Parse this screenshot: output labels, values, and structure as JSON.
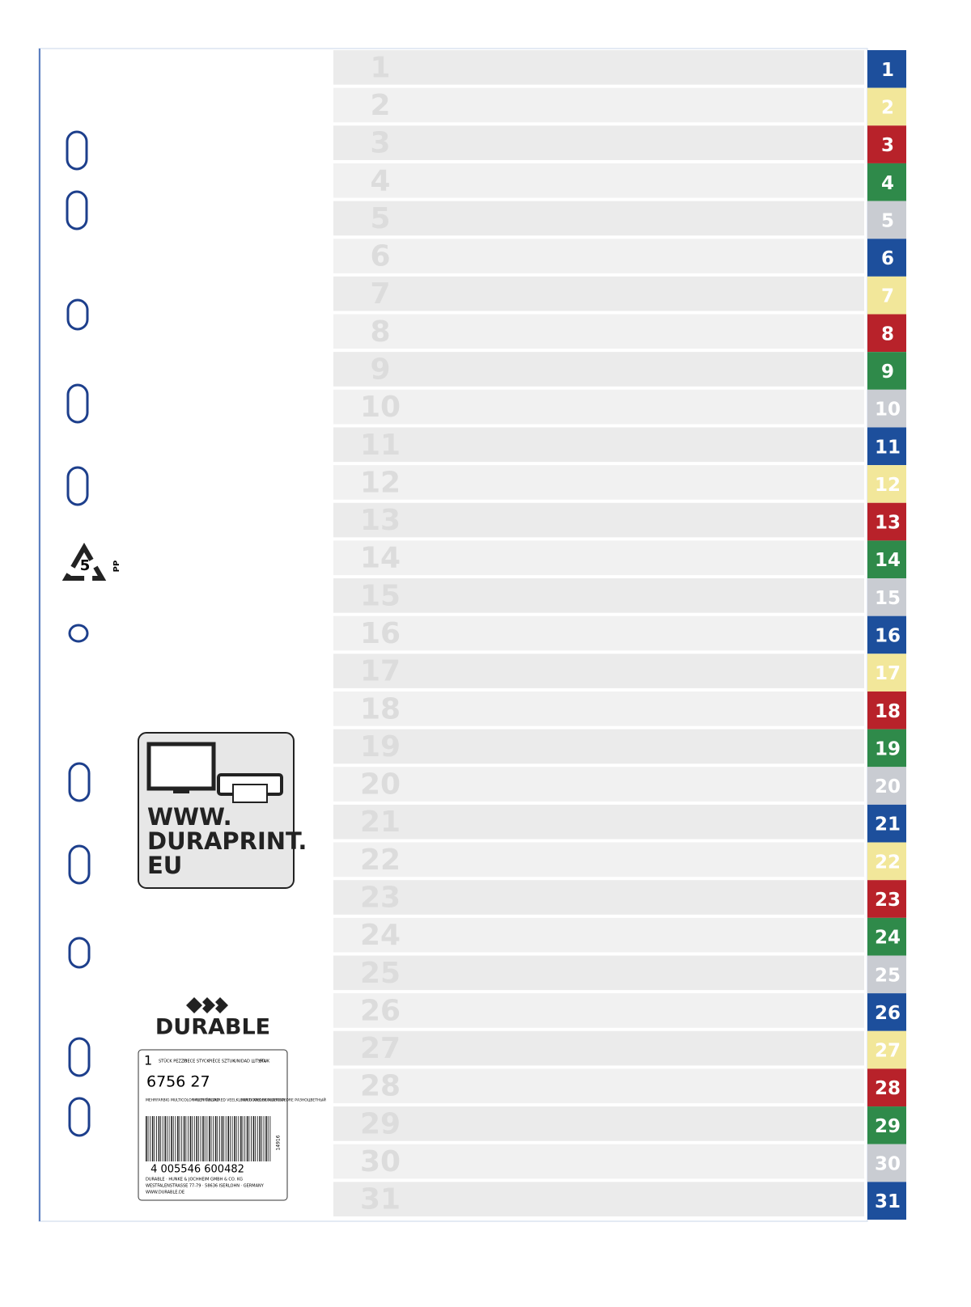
{
  "tabs": [
    {
      "label": "1",
      "color": "#1d4f9c"
    },
    {
      "label": "2",
      "color": "#f2e79a"
    },
    {
      "label": "3",
      "color": "#b8222a"
    },
    {
      "label": "4",
      "color": "#2f8a4a"
    },
    {
      "label": "5",
      "color": "#c9ccd2"
    },
    {
      "label": "6",
      "color": "#1d4f9c"
    },
    {
      "label": "7",
      "color": "#f2e79a"
    },
    {
      "label": "8",
      "color": "#b8222a"
    },
    {
      "label": "9",
      "color": "#2f8a4a"
    },
    {
      "label": "10",
      "color": "#c9ccd2"
    },
    {
      "label": "11",
      "color": "#1d4f9c"
    },
    {
      "label": "12",
      "color": "#f2e79a"
    },
    {
      "label": "13",
      "color": "#b8222a"
    },
    {
      "label": "14",
      "color": "#2f8a4a"
    },
    {
      "label": "15",
      "color": "#c9ccd2"
    },
    {
      "label": "16",
      "color": "#1d4f9c"
    },
    {
      "label": "17",
      "color": "#f2e79a"
    },
    {
      "label": "18",
      "color": "#b8222a"
    },
    {
      "label": "19",
      "color": "#2f8a4a"
    },
    {
      "label": "20",
      "color": "#c9ccd2"
    },
    {
      "label": "21",
      "color": "#1d4f9c"
    },
    {
      "label": "22",
      "color": "#f2e79a"
    },
    {
      "label": "23",
      "color": "#b8222a"
    },
    {
      "label": "24",
      "color": "#2f8a4a"
    },
    {
      "label": "25",
      "color": "#c9ccd2"
    },
    {
      "label": "26",
      "color": "#1d4f9c"
    },
    {
      "label": "27",
      "color": "#f2e79a"
    },
    {
      "label": "28",
      "color": "#b8222a"
    },
    {
      "label": "29",
      "color": "#2f8a4a"
    },
    {
      "label": "30",
      "color": "#c9ccd2"
    },
    {
      "label": "31",
      "color": "#1d4f9c"
    }
  ],
  "recycling": {
    "code": "5",
    "material": "PP"
  },
  "web_box": {
    "lines": [
      "WWW.",
      "DURAPRINT.",
      "EU"
    ]
  },
  "brand": "DURABLE",
  "label": {
    "quantity": "1",
    "units": [
      "STÜCK PEZZO",
      "PIECE STYCK",
      "PIÈCE SZTUK",
      "UNIDAD ШТУКА",
      "STUK"
    ],
    "article": "6756 27",
    "colors": [
      "MEHRFARBIG MULTICOLOR FLERFÄRGAD",
      "MULTI COLOURED VEELKLEURIG WIELOKOLOROWY",
      "MULTICOLORE MULTICOLORE РАЗНОЦВЕТНЫЙ"
    ],
    "barcode": "4 005546 600482",
    "code": "14916",
    "address": [
      "DURABLE · HUNKE & JOCHHEIM GMBH & CO. KG",
      "WESTFALENSTRASSE 77-79 · 58636 ISERLOHN · GERMANY",
      "WWW.DURABLE.DE"
    ]
  }
}
